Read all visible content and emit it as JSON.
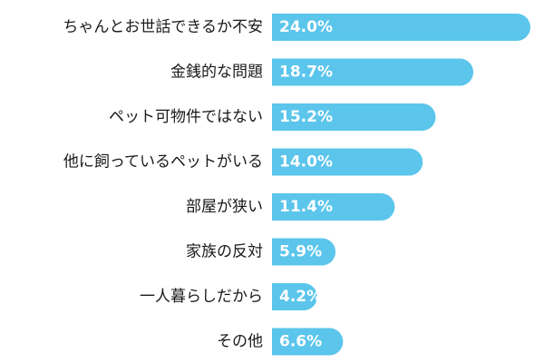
{
  "colors": {
    "bar": "#5bc5ec",
    "value_text": "#ffffff",
    "label_text": "#1a1a1a"
  },
  "chart_data": {
    "type": "bar",
    "orientation": "horizontal",
    "categories": [
      "ちゃんとお世話できるか不安",
      "金銭的な問題",
      "ペット可物件ではない",
      "他に飼っているペットがいる",
      "部屋が狭い",
      "家族の反対",
      "一人暮らしだから",
      "その他"
    ],
    "values": [
      24.0,
      18.7,
      15.2,
      14.0,
      11.4,
      5.9,
      4.2,
      6.6
    ],
    "value_labels": [
      "24.0%",
      "18.7%",
      "15.2%",
      "14.0%",
      "11.4%",
      "5.9%",
      "4.2%",
      "6.6%"
    ],
    "value_unit": "%",
    "xlim": [
      0,
      24.0
    ],
    "grid": false,
    "legend": "none"
  }
}
